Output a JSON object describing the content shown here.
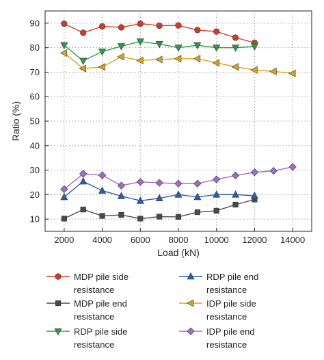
{
  "chart_data": {
    "type": "line",
    "xlabel": "Load (kN)",
    "ylabel": "Ratio (%)",
    "xlim": [
      1000,
      15000
    ],
    "ylim": [
      5,
      95
    ],
    "x_ticks": [
      2000,
      4000,
      6000,
      8000,
      10000,
      12000,
      14000
    ],
    "y_ticks": [
      10,
      20,
      30,
      40,
      50,
      60,
      70,
      80,
      90
    ],
    "x_tick_labels": [
      "2000",
      "4000",
      "6000",
      "8000",
      "10000",
      "12000",
      "14000"
    ],
    "y_tick_labels": [
      "10",
      "20",
      "30",
      "40",
      "50",
      "60",
      "70",
      "80",
      "90"
    ],
    "grid": true,
    "legend_position": "bottom",
    "series": [
      {
        "key": "mdp-side",
        "name": "MDP pile side resistance",
        "legend_lines": [
          "MDP pile side",
          "resistance"
        ],
        "color": "#d13b2a",
        "marker": "circle",
        "x": [
          2000,
          3000,
          4000,
          5000,
          6000,
          7000,
          8000,
          9000,
          10000,
          11000,
          12000
        ],
        "y": [
          89.8,
          86.1,
          88.7,
          88.3,
          89.8,
          89.0,
          89.1,
          87.2,
          86.6,
          84.1,
          82.0
        ]
      },
      {
        "key": "mdp-end",
        "name": "MDP pile end resistance",
        "legend_lines": [
          "MDP pile end",
          "resistance"
        ],
        "color": "#4a4a4a",
        "marker": "square",
        "x": [
          2000,
          3000,
          4000,
          5000,
          6000,
          7000,
          8000,
          9000,
          10000,
          11000,
          12000
        ],
        "y": [
          10.2,
          13.9,
          11.3,
          11.7,
          10.2,
          11.0,
          10.9,
          12.8,
          13.4,
          15.9,
          18.0
        ]
      },
      {
        "key": "rdp-side",
        "name": "RDP pile side resistance",
        "legend_lines": [
          "RDP pile side",
          "resistance"
        ],
        "color": "#2e9a48",
        "marker": "triangle-down",
        "x": [
          2000,
          3000,
          4000,
          5000,
          6000,
          7000,
          8000,
          9000,
          10000,
          11000,
          12000
        ],
        "y": [
          81.0,
          74.6,
          78.4,
          80.6,
          82.5,
          81.5,
          80.0,
          81.0,
          80.0,
          80.0,
          80.5
        ]
      },
      {
        "key": "rdp-end",
        "name": "RDP pile end resistance",
        "legend_lines": [
          "RDP pile end",
          "resistance"
        ],
        "color": "#2d5ea8",
        "marker": "triangle-up",
        "x": [
          2000,
          3000,
          4000,
          5000,
          6000,
          7000,
          8000,
          9000,
          10000,
          11000,
          12000
        ],
        "y": [
          19.0,
          25.4,
          21.6,
          19.4,
          17.5,
          18.5,
          20.0,
          19.0,
          20.0,
          20.0,
          19.5
        ]
      },
      {
        "key": "idp-side",
        "name": "IDP pile side resistance",
        "legend_lines": [
          "IDP pile side",
          "resistance"
        ],
        "color": "#d9a41a",
        "marker": "triangle-left",
        "x": [
          2000,
          3000,
          4000,
          5000,
          6000,
          7000,
          8000,
          9000,
          10000,
          11000,
          12000,
          13000,
          14000
        ],
        "y": [
          77.8,
          71.5,
          72.1,
          76.3,
          74.8,
          75.2,
          75.5,
          75.5,
          73.8,
          72.2,
          70.9,
          70.3,
          69.5
        ]
      },
      {
        "key": "idp-end",
        "name": "IDP pile end resistance",
        "legend_lines": [
          "IDP pile end",
          "resistance"
        ],
        "color": "#a36bc8",
        "marker": "diamond",
        "x": [
          2000,
          3000,
          4000,
          5000,
          6000,
          7000,
          8000,
          9000,
          10000,
          11000,
          12000,
          13000,
          14000
        ],
        "y": [
          22.2,
          28.5,
          27.9,
          23.7,
          25.2,
          24.8,
          24.5,
          24.5,
          26.2,
          27.8,
          29.1,
          29.7,
          31.3
        ]
      }
    ]
  }
}
